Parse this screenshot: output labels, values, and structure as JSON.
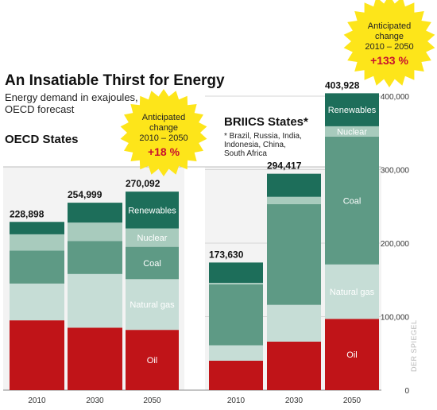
{
  "title": "An Insatiable Thirst for Energy",
  "subtitle_lines": [
    "Energy demand in exajoules,",
    "OECD forecast"
  ],
  "credit": "DER SPIEGEL",
  "colors": {
    "oil": "#c01418",
    "natural_gas": "#c6ddd6",
    "coal": "#5e9a85",
    "nuclear": "#a8cbbd",
    "renewables": "#1d6e5a",
    "badge": "#fde51a",
    "badge_pct": "#c8102e"
  },
  "chart_data": [
    {
      "type": "bar",
      "stacked": true,
      "title": "OECD States",
      "categories": [
        "2010",
        "2030",
        "2050"
      ],
      "series": [
        {
          "name": "Oil",
          "values": [
            95000,
            85000,
            82000
          ]
        },
        {
          "name": "Natural gas",
          "values": [
            50000,
            73000,
            69000
          ]
        },
        {
          "name": "Coal",
          "values": [
            45000,
            45000,
            44000
          ]
        },
        {
          "name": "Nuclear",
          "values": [
            22000,
            25000,
            25000
          ]
        },
        {
          "name": "Renewables",
          "values": [
            16898,
            26999,
            50092
          ]
        }
      ],
      "totals": [
        "228,898",
        "254,999",
        "270,092"
      ],
      "badge": {
        "lines": [
          "Anticipated",
          "change",
          "2010 – 2050"
        ],
        "pct": "+18 %"
      },
      "ylim": [
        0,
        410000
      ]
    },
    {
      "type": "bar",
      "stacked": true,
      "title": "BRIICS States*",
      "footnote_lines": [
        "* Brazil, Russia, India,",
        "Indonesia, China,",
        "South Africa"
      ],
      "categories": [
        "2010",
        "2030",
        "2050"
      ],
      "series": [
        {
          "name": "Oil",
          "values": [
            40000,
            66000,
            97000
          ]
        },
        {
          "name": "Natural gas",
          "values": [
            21000,
            50000,
            74000
          ]
        },
        {
          "name": "Coal",
          "values": [
            83000,
            137000,
            174000
          ]
        },
        {
          "name": "Nuclear",
          "values": [
            2000,
            10000,
            14000
          ]
        },
        {
          "name": "Renewables",
          "values": [
            27630,
            31417,
            44928
          ]
        }
      ],
      "totals": [
        "173,630",
        "294,417",
        "403,928"
      ],
      "badge": {
        "lines": [
          "Anticipated",
          "change",
          "2010 – 2050"
        ],
        "pct": "+133 %"
      },
      "yticks": [
        {
          "value": 0,
          "label": "0"
        },
        {
          "value": 100000,
          "label": "100,000"
        },
        {
          "value": 200000,
          "label": "200,000"
        },
        {
          "value": 300000,
          "label": "300,000"
        },
        {
          "value": 400000,
          "label": "400,000"
        }
      ],
      "ylim": [
        0,
        410000
      ]
    }
  ]
}
